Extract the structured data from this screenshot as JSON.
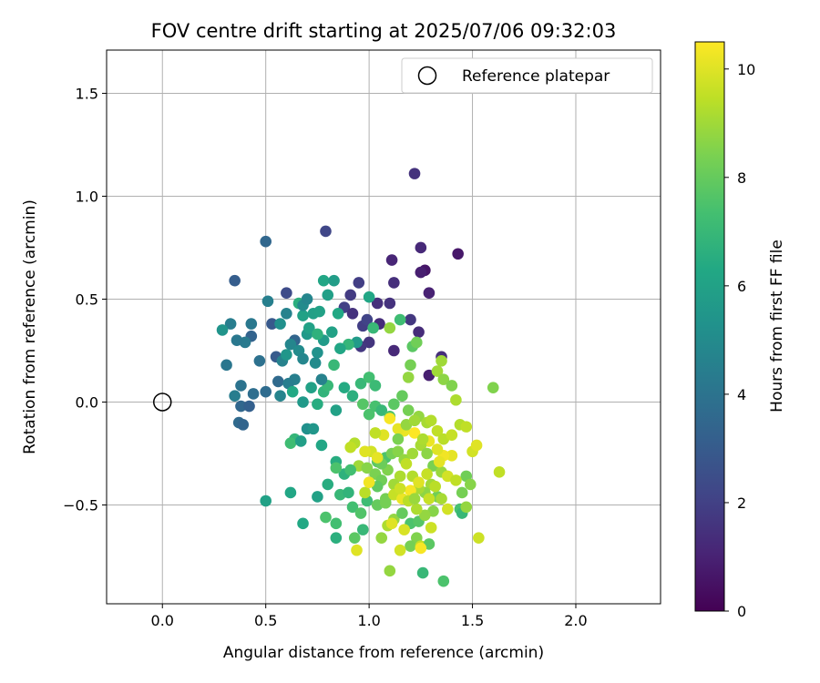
{
  "chart_data": {
    "type": "scatter",
    "title": "FOV centre drift starting at 2025/07/06 09:32:03",
    "xlabel": "Angular distance from reference (arcmin)",
    "ylabel": "Rotation from reference (arcmin)",
    "xlim": [
      -0.27,
      2.41
    ],
    "ylim": [
      -0.98,
      1.71
    ],
    "xticks": [
      0.0,
      0.5,
      1.0,
      1.5,
      2.0
    ],
    "xtick_labels": [
      "0.0",
      "0.5",
      "1.0",
      "1.5",
      "2.0"
    ],
    "yticks": [
      -0.5,
      0.0,
      0.5,
      1.0,
      1.5
    ],
    "ytick_labels": [
      "−0.5",
      "0.0",
      "0.5",
      "1.0",
      "1.5"
    ],
    "grid": true,
    "colormap": "viridis",
    "colorbar": {
      "label": "Hours from first FF file",
      "range": [
        0,
        10.5
      ],
      "ticks": [
        0,
        2,
        4,
        6,
        8,
        10
      ],
      "tick_labels": [
        "0",
        "2",
        "4",
        "6",
        "8",
        "10"
      ]
    },
    "legend": {
      "placement": "top-right",
      "entries": [
        "Reference platepar"
      ]
    },
    "reference_point": {
      "x": 0.0,
      "y": 0.0
    },
    "points": [
      [
        1.43,
        0.72,
        0.7
      ],
      [
        1.27,
        0.64,
        0.6
      ],
      [
        1.25,
        0.63,
        0.9
      ],
      [
        1.22,
        1.11,
        1.5
      ],
      [
        1.25,
        0.75,
        1.2
      ],
      [
        1.29,
        0.53,
        1.0
      ],
      [
        1.11,
        0.69,
        1.1
      ],
      [
        1.24,
        0.34,
        1.3
      ],
      [
        1.29,
        0.13,
        0.9
      ],
      [
        1.35,
        0.22,
        1.4
      ],
      [
        1.12,
        0.25,
        1.2
      ],
      [
        1.1,
        0.48,
        1.5
      ],
      [
        1.04,
        0.48,
        1.4
      ],
      [
        1.05,
        0.38,
        1.3
      ],
      [
        1.0,
        0.29,
        1.6
      ],
      [
        0.97,
        0.37,
        1.9
      ],
      [
        0.95,
        0.58,
        1.9
      ],
      [
        0.91,
        0.52,
        1.8
      ],
      [
        0.88,
        0.46,
        2.0
      ],
      [
        0.92,
        0.43,
        1.5
      ],
      [
        0.96,
        0.27,
        1.7
      ],
      [
        0.99,
        0.4,
        2.1
      ],
      [
        1.12,
        0.58,
        1.4
      ],
      [
        1.2,
        0.4,
        1.7
      ],
      [
        0.79,
        0.83,
        2.2
      ],
      [
        0.6,
        0.53,
        2.4
      ],
      [
        0.5,
        0.78,
        3.5
      ],
      [
        0.35,
        0.59,
        3.1
      ],
      [
        0.53,
        0.38,
        2.9
      ],
      [
        0.55,
        0.22,
        3.0
      ],
      [
        0.64,
        0.3,
        3.4
      ],
      [
        0.56,
        0.1,
        3.6
      ],
      [
        0.5,
        0.05,
        3.7
      ],
      [
        0.44,
        0.04,
        3.8
      ],
      [
        0.47,
        0.2,
        3.9
      ],
      [
        0.43,
        0.32,
        3.3
      ],
      [
        0.4,
        0.29,
        4.3
      ],
      [
        0.36,
        0.3,
        4.2
      ],
      [
        0.31,
        0.18,
        4.1
      ],
      [
        0.35,
        0.03,
        4.4
      ],
      [
        0.38,
        0.08,
        4.0
      ],
      [
        0.38,
        -0.02,
        3.5
      ],
      [
        0.42,
        -0.02,
        3.2
      ],
      [
        0.37,
        -0.1,
        3.6
      ],
      [
        0.39,
        -0.11,
        3.4
      ],
      [
        0.33,
        0.38,
        4.4
      ],
      [
        0.29,
        0.35,
        5.4
      ],
      [
        0.43,
        0.38,
        4.2
      ],
      [
        0.51,
        0.49,
        4.5
      ],
      [
        0.57,
        0.38,
        5.2
      ],
      [
        0.58,
        0.2,
        4.6
      ],
      [
        0.6,
        0.23,
        5.5
      ],
      [
        0.62,
        0.28,
        4.8
      ],
      [
        0.66,
        0.25,
        5.0
      ],
      [
        0.7,
        0.33,
        5.6
      ],
      [
        0.73,
        0.43,
        5.9
      ],
      [
        0.76,
        0.44,
        6.0
      ],
      [
        0.78,
        0.59,
        6.2
      ],
      [
        0.83,
        0.59,
        5.8
      ],
      [
        0.8,
        0.52,
        5.9
      ],
      [
        0.85,
        0.43,
        6.3
      ],
      [
        0.82,
        0.34,
        6.0
      ],
      [
        0.78,
        0.3,
        5.7
      ],
      [
        0.75,
        0.24,
        5.3
      ],
      [
        0.74,
        0.19,
        5.0
      ],
      [
        0.68,
        0.21,
        4.8
      ],
      [
        0.64,
        0.11,
        4.5
      ],
      [
        0.61,
        0.09,
        4.4
      ],
      [
        0.57,
        0.03,
        4.7
      ],
      [
        0.63,
        0.05,
        6.3
      ],
      [
        0.68,
        0.0,
        5.6
      ],
      [
        0.72,
        0.07,
        6.0
      ],
      [
        0.75,
        -0.01,
        6.5
      ],
      [
        0.78,
        0.05,
        6.8
      ],
      [
        0.8,
        0.08,
        7.0
      ],
      [
        0.83,
        0.18,
        7.0
      ],
      [
        0.77,
        0.11,
        4.6
      ],
      [
        0.7,
        -0.13,
        5.2
      ],
      [
        0.73,
        -0.13,
        5.5
      ],
      [
        0.64,
        -0.18,
        6.9
      ],
      [
        0.62,
        -0.2,
        7.2
      ],
      [
        0.67,
        -0.19,
        5.9
      ],
      [
        0.77,
        -0.21,
        6.2
      ],
      [
        0.84,
        -0.04,
        6.0
      ],
      [
        0.88,
        0.07,
        6.4
      ],
      [
        0.92,
        0.03,
        6.6
      ],
      [
        0.94,
        0.29,
        5.7
      ],
      [
        0.9,
        0.28,
        6.9
      ],
      [
        0.86,
        0.26,
        6.2
      ],
      [
        0.71,
        0.36,
        6.0
      ],
      [
        0.68,
        0.42,
        6.0
      ],
      [
        0.75,
        0.33,
        6.7
      ],
      [
        0.66,
        0.48,
        6.6
      ],
      [
        0.68,
        0.47,
        5.0
      ],
      [
        0.7,
        0.5,
        4.8
      ],
      [
        0.6,
        0.43,
        4.6
      ],
      [
        1.0,
        0.51,
        6.2
      ],
      [
        1.02,
        0.36,
        7.0
      ],
      [
        1.15,
        0.4,
        7.2
      ],
      [
        1.21,
        0.27,
        7.8
      ],
      [
        1.23,
        0.29,
        8.2
      ],
      [
        1.2,
        0.18,
        8.3
      ],
      [
        1.19,
        0.12,
        8.8
      ],
      [
        1.33,
        0.15,
        9.0
      ],
      [
        1.35,
        0.2,
        9.0
      ],
      [
        1.36,
        0.11,
        8.7
      ],
      [
        1.4,
        0.08,
        8.5
      ],
      [
        1.42,
        0.01,
        9.2
      ],
      [
        1.6,
        0.07,
        8.5
      ],
      [
        1.1,
        0.36,
        8.8
      ],
      [
        0.96,
        0.09,
        7.0
      ],
      [
        1.0,
        0.12,
        7.3
      ],
      [
        1.03,
        0.08,
        7.1
      ],
      [
        0.97,
        -0.01,
        7.7
      ],
      [
        1.0,
        -0.06,
        7.5
      ],
      [
        1.03,
        -0.02,
        7.4
      ],
      [
        1.06,
        -0.04,
        7.0
      ],
      [
        1.1,
        -0.07,
        7.5
      ],
      [
        1.12,
        -0.01,
        7.8
      ],
      [
        1.16,
        0.03,
        8.0
      ],
      [
        1.19,
        -0.04,
        8.3
      ],
      [
        1.24,
        -0.07,
        8.8
      ],
      [
        1.28,
        -0.1,
        9.1
      ],
      [
        1.3,
        -0.09,
        9.3
      ],
      [
        1.33,
        -0.14,
        9.5
      ],
      [
        1.36,
        -0.18,
        9.4
      ],
      [
        1.4,
        -0.16,
        9.6
      ],
      [
        1.44,
        -0.11,
        9.3
      ],
      [
        1.47,
        -0.12,
        9.5
      ],
      [
        1.5,
        -0.24,
        9.8
      ],
      [
        1.52,
        -0.21,
        10.0
      ],
      [
        1.47,
        -0.36,
        8.2
      ],
      [
        1.45,
        -0.44,
        8.3
      ],
      [
        1.49,
        -0.4,
        8.6
      ],
      [
        1.4,
        -0.26,
        10.1
      ],
      [
        1.36,
        -0.26,
        10.3
      ],
      [
        1.33,
        -0.23,
        10.0
      ],
      [
        1.29,
        -0.19,
        10.2
      ],
      [
        1.22,
        -0.15,
        10.5
      ],
      [
        1.17,
        -0.14,
        10.2
      ],
      [
        1.14,
        -0.13,
        10.1
      ],
      [
        1.1,
        -0.08,
        10.4
      ],
      [
        1.07,
        -0.16,
        10.0
      ],
      [
        1.03,
        -0.15,
        9.5
      ],
      [
        1.01,
        -0.24,
        9.8
      ],
      [
        0.98,
        -0.24,
        10.0
      ],
      [
        0.93,
        -0.2,
        9.3
      ],
      [
        0.91,
        -0.22,
        9.5
      ],
      [
        0.95,
        -0.31,
        9.0
      ],
      [
        0.99,
        -0.32,
        8.6
      ],
      [
        1.03,
        -0.35,
        8.4
      ],
      [
        1.06,
        -0.38,
        8.2
      ],
      [
        0.84,
        -0.29,
        6.5
      ],
      [
        0.88,
        -0.35,
        6.7
      ],
      [
        0.91,
        -0.33,
        7.3
      ],
      [
        0.84,
        -0.32,
        7.5
      ],
      [
        0.8,
        -0.4,
        6.5
      ],
      [
        0.75,
        -0.46,
        6.0
      ],
      [
        0.68,
        -0.59,
        6.3
      ],
      [
        0.62,
        -0.44,
        6.2
      ],
      [
        0.5,
        -0.48,
        6.0
      ],
      [
        0.79,
        -0.56,
        7.5
      ],
      [
        0.84,
        -0.59,
        7.3
      ],
      [
        0.86,
        -0.45,
        7.0
      ],
      [
        0.9,
        -0.44,
        6.8
      ],
      [
        0.92,
        -0.51,
        7.3
      ],
      [
        0.96,
        -0.54,
        7.6
      ],
      [
        0.99,
        -0.48,
        7.2
      ],
      [
        0.84,
        -0.66,
        6.6
      ],
      [
        0.93,
        -0.66,
        7.8
      ],
      [
        0.97,
        -0.62,
        7.0
      ],
      [
        1.04,
        -0.5,
        8.0
      ],
      [
        1.08,
        -0.47,
        8.3
      ],
      [
        1.12,
        -0.57,
        8.8
      ],
      [
        1.16,
        -0.54,
        8.0
      ],
      [
        1.2,
        -0.59,
        7.5
      ],
      [
        1.24,
        -0.58,
        7.7
      ],
      [
        1.23,
        -0.66,
        8.5
      ],
      [
        1.2,
        -0.7,
        8.3
      ],
      [
        1.25,
        -0.7,
        9.5
      ],
      [
        1.29,
        -0.69,
        7.8
      ],
      [
        1.26,
        -0.83,
        7.0
      ],
      [
        1.36,
        -0.87,
        7.5
      ],
      [
        1.1,
        -0.82,
        8.8
      ],
      [
        1.09,
        -0.6,
        9.2
      ],
      [
        0.94,
        -0.72,
        10.0
      ],
      [
        1.06,
        -0.66,
        8.8
      ],
      [
        1.15,
        -0.72,
        9.8
      ],
      [
        1.25,
        -0.71,
        10.4
      ],
      [
        1.3,
        -0.61,
        9.7
      ],
      [
        1.33,
        -0.46,
        8.2
      ],
      [
        1.38,
        -0.52,
        9.8
      ],
      [
        1.44,
        -0.52,
        7.4
      ],
      [
        1.45,
        -0.54,
        7.0
      ],
      [
        1.47,
        -0.51,
        8.8
      ],
      [
        1.53,
        -0.66,
        9.7
      ],
      [
        1.63,
        -0.34,
        9.5
      ],
      [
        1.04,
        -0.29,
        7.8
      ],
      [
        1.08,
        -0.27,
        7.5
      ],
      [
        1.11,
        -0.25,
        8.3
      ],
      [
        1.14,
        -0.24,
        8.6
      ],
      [
        1.17,
        -0.28,
        8.8
      ],
      [
        1.21,
        -0.25,
        9.0
      ],
      [
        1.25,
        -0.21,
        9.1
      ],
      [
        1.28,
        -0.25,
        8.7
      ],
      [
        1.31,
        -0.31,
        8.4
      ],
      [
        1.35,
        -0.34,
        8.9
      ],
      [
        1.38,
        -0.36,
        9.8
      ],
      [
        1.42,
        -0.38,
        9.5
      ],
      [
        1.3,
        -0.4,
        9.0
      ],
      [
        1.27,
        -0.44,
        8.7
      ],
      [
        1.24,
        -0.42,
        9.1
      ],
      [
        1.21,
        -0.36,
        9.3
      ],
      [
        1.18,
        -0.3,
        9.5
      ],
      [
        1.15,
        -0.36,
        9.2
      ],
      [
        1.12,
        -0.4,
        9.0
      ],
      [
        1.09,
        -0.33,
        8.5
      ],
      [
        1.06,
        -0.3,
        8.1
      ],
      [
        1.04,
        -0.41,
        7.9
      ],
      [
        1.08,
        -0.49,
        8.3
      ],
      [
        1.12,
        -0.45,
        9.6
      ],
      [
        1.16,
        -0.47,
        10.2
      ],
      [
        1.2,
        -0.43,
        10.4
      ],
      [
        1.24,
        -0.39,
        10.0
      ],
      [
        1.28,
        -0.35,
        9.6
      ],
      [
        1.32,
        -0.41,
        9.4
      ],
      [
        1.35,
        -0.47,
        9.1
      ],
      [
        1.31,
        -0.53,
        8.6
      ],
      [
        1.27,
        -0.55,
        8.8
      ],
      [
        1.23,
        -0.52,
        9.2
      ],
      [
        1.19,
        -0.48,
        9.4
      ],
      [
        1.15,
        -0.42,
        9.7
      ],
      [
        1.11,
        -0.59,
        10.0
      ],
      [
        1.17,
        -0.62,
        9.9
      ],
      [
        1.22,
        -0.47,
        8.9
      ],
      [
        1.29,
        -0.47,
        9.6
      ],
      [
        1.34,
        -0.29,
        10.1
      ],
      [
        1.26,
        -0.18,
        9.2
      ],
      [
        1.18,
        -0.11,
        8.8
      ],
      [
        1.22,
        -0.09,
        9.0
      ],
      [
        1.14,
        -0.18,
        8.4
      ],
      [
        0.98,
        -0.44,
        9.4
      ],
      [
        1.0,
        -0.39,
        10.3
      ],
      [
        1.04,
        -0.27,
        10.1
      ]
    ]
  }
}
